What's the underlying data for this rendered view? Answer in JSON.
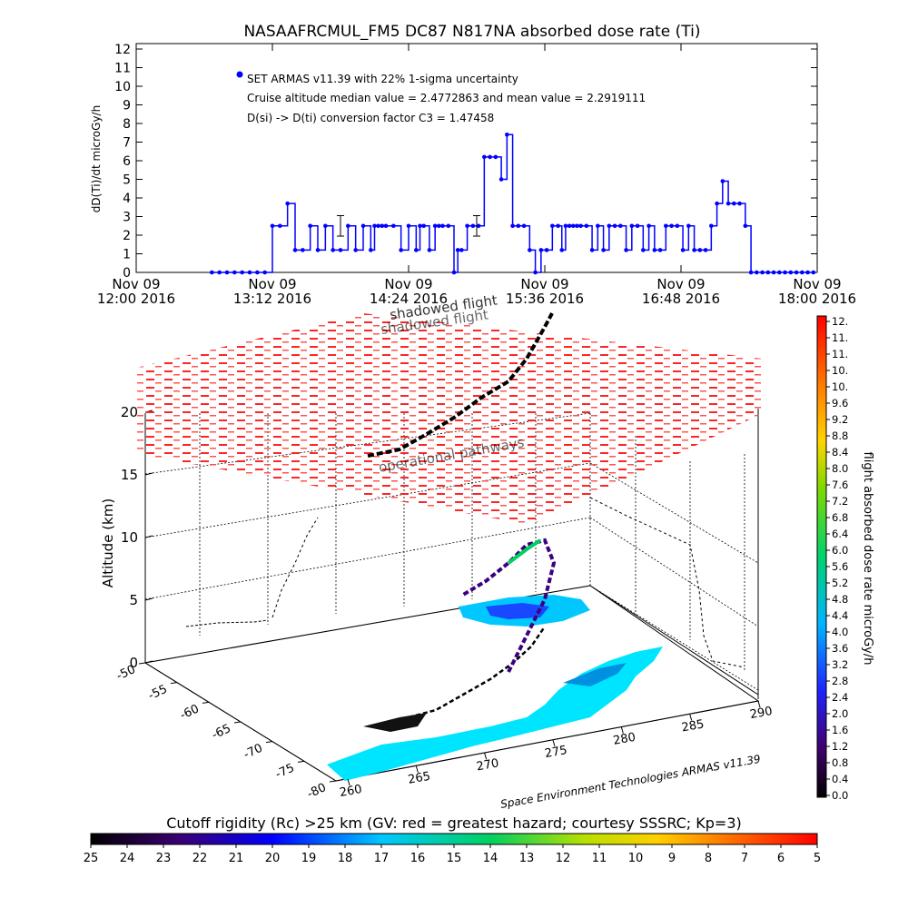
{
  "chart_data": [
    {
      "type": "line",
      "title": "NASAAFRCMUL_FM5 DC87 N817NA absorbed dose rate (Ti)",
      "ylabel": "dD(Ti)/dt microGy/h",
      "xlabel": "",
      "ylim": [
        0,
        12
      ],
      "yticks": [
        "0",
        "1",
        "2",
        "3",
        "4",
        "5",
        "6",
        "7",
        "8",
        "9",
        "10",
        "11",
        "12"
      ],
      "xticks": [
        {
          "date": "Nov 09",
          "time": "12:00 2016"
        },
        {
          "date": "Nov 09",
          "time": "13:12 2016"
        },
        {
          "date": "Nov 09",
          "time": "14:24 2016"
        },
        {
          "date": "Nov 09",
          "time": "15:36 2016"
        },
        {
          "date": "Nov 09",
          "time": "16:48 2016"
        },
        {
          "date": "Nov 09",
          "time": "18:00 2016"
        }
      ],
      "xlim_minutes_from_start": [
        0,
        360
      ],
      "annotations": [
        "SET ARMAS v11.39 with 22% 1-sigma uncertainty",
        "Cruise altitude median value = 2.4772863 and mean value = 2.2919111",
        "D(si) -> D(ti) conversion factor C3 = 1.47458"
      ],
      "grid": false,
      "color": "#0000ff",
      "series": [
        {
          "name": "SET ARMAS v11.39 with 22% 1-sigma uncertainty",
          "x_minutes": [
            40,
            44,
            48,
            52,
            56,
            60,
            64,
            68,
            72,
            76,
            80,
            84,
            88,
            92,
            96,
            100,
            104,
            108,
            112,
            116,
            120,
            124,
            126,
            128,
            130,
            132,
            136,
            140,
            144,
            148,
            150,
            152,
            155,
            158,
            160,
            162,
            165,
            168,
            170,
            172,
            175,
            178,
            181,
            184,
            187,
            190,
            193,
            196,
            199,
            202,
            205,
            208,
            211,
            214,
            217,
            220,
            223,
            225,
            227,
            229,
            231,
            233,
            235,
            238,
            241,
            244,
            247,
            250,
            253,
            256,
            259,
            262,
            265,
            268,
            271,
            274,
            277,
            280,
            283,
            286,
            289,
            292,
            295,
            298,
            301,
            304,
            307,
            310,
            313,
            316,
            319,
            322,
            325,
            328,
            331,
            334,
            337,
            340,
            343,
            346,
            349,
            352,
            355,
            358
          ],
          "values": [
            0,
            0,
            0,
            0,
            0,
            0,
            0,
            0,
            2.5,
            2.5,
            3.7,
            1.2,
            1.2,
            2.5,
            1.2,
            2.5,
            1.2,
            1.2,
            2.5,
            1.2,
            2.5,
            1.2,
            2.5,
            2.5,
            2.5,
            2.5,
            2.5,
            1.2,
            2.5,
            1.2,
            2.5,
            2.5,
            1.2,
            2.5,
            2.5,
            2.5,
            2.5,
            0,
            1.2,
            1.2,
            2.5,
            2.5,
            2.5,
            6.2,
            6.2,
            6.2,
            5,
            7.4,
            2.5,
            2.5,
            2.5,
            1.2,
            0,
            1.2,
            1.2,
            2.5,
            2.5,
            1.2,
            2.5,
            2.5,
            2.5,
            2.5,
            2.5,
            2.5,
            1.2,
            2.5,
            1.2,
            2.5,
            2.5,
            2.5,
            1.2,
            2.5,
            2.5,
            1.2,
            2.5,
            1.2,
            1.2,
            2.5,
            2.5,
            2.5,
            1.2,
            2.5,
            1.2,
            1.2,
            1.2,
            2.5,
            3.7,
            4.9,
            3.7,
            3.7,
            3.7,
            2.5,
            0,
            0,
            0,
            0,
            0,
            0,
            0,
            0,
            0,
            0,
            0,
            0
          ]
        }
      ]
    },
    {
      "type": "scatter",
      "title": "",
      "zlabel": "Altitude (km)",
      "zlim": [
        0,
        20
      ],
      "zticks": [
        "0",
        "5",
        "10",
        "15",
        "20"
      ],
      "lat_ticks": [
        "-80",
        "-75",
        "-70",
        "-65",
        "-60",
        "-55",
        "-50"
      ],
      "lon_ticks": [
        "260",
        "265",
        "270",
        "275",
        "280",
        "285",
        "290"
      ],
      "overlay_labels": [
        "shadowed flight",
        "shadowed flight",
        "operational pathways"
      ],
      "colorbar_label": "flight absorbed dose rate microGy/h",
      "colorbar_ticks": [
        "0.0",
        "0.4",
        "0.8",
        "1.2",
        "1.6",
        "2.0",
        "2.4",
        "2.8",
        "3.2",
        "3.6",
        "4.0",
        "4.4",
        "4.8",
        "5.2",
        "5.6",
        "6.0",
        "6.4",
        "6.8",
        "7.2",
        "7.6",
        "8.0",
        "8.4",
        "8.8",
        "9.2",
        "9.6",
        "10.",
        "10.",
        "11.",
        "11.",
        "12."
      ],
      "credit": "Space Environment Technologies ARMAS v11.39",
      "flight_layer_color": "#ff0000",
      "ground_color": "#00e5ff"
    },
    {
      "type": "heatmap",
      "title": "Cutoff rigidity (Rc) >25 km (GV: red = greatest hazard; courtesy SSSRC; Kp=3)",
      "ticks": [
        "25",
        "24",
        "23",
        "22",
        "21",
        "20",
        "19",
        "18",
        "17",
        "16",
        "15",
        "14",
        "13",
        "12",
        "11",
        "10",
        "9",
        "8",
        "7",
        "6",
        "5"
      ]
    }
  ]
}
